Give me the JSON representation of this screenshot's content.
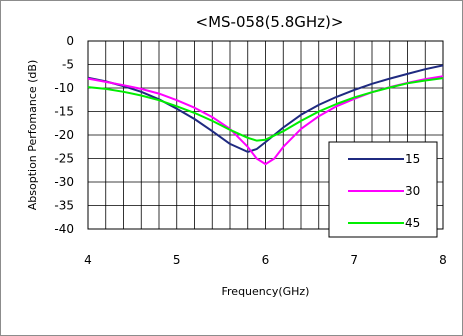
{
  "chart_data": {
    "type": "line",
    "title": "<MS-058(5.8GHz)>",
    "xlabel": "Frequency(GHz)",
    "ylabel": "Absoption Perfomance (dB)",
    "xlim": [
      4,
      8
    ],
    "ylim": [
      -40,
      0
    ],
    "x_ticks": [
      4,
      5,
      6,
      7,
      8
    ],
    "y_ticks": [
      0,
      -5,
      -10,
      -15,
      -20,
      -25,
      -30,
      -35,
      -40
    ],
    "x_minor_step": 0.2,
    "grid": true,
    "legend_position": "right-bottom",
    "series": [
      {
        "name": "15",
        "color": "#1f2a80",
        "points": [
          [
            4.0,
            -7.8
          ],
          [
            4.2,
            -8.6
          ],
          [
            4.4,
            -9.6
          ],
          [
            4.6,
            -10.8
          ],
          [
            4.8,
            -12.4
          ],
          [
            5.0,
            -14.4
          ],
          [
            5.2,
            -16.6
          ],
          [
            5.4,
            -19.2
          ],
          [
            5.6,
            -21.9
          ],
          [
            5.8,
            -23.6
          ],
          [
            5.9,
            -23.0
          ],
          [
            6.0,
            -21.5
          ],
          [
            6.2,
            -18.4
          ],
          [
            6.4,
            -15.7
          ],
          [
            6.6,
            -13.6
          ],
          [
            6.8,
            -11.9
          ],
          [
            7.0,
            -10.4
          ],
          [
            7.2,
            -9.1
          ],
          [
            7.4,
            -8.0
          ],
          [
            7.6,
            -7.0
          ],
          [
            7.8,
            -6.0
          ],
          [
            8.0,
            -5.2
          ]
        ]
      },
      {
        "name": "30",
        "color": "#ff00ff",
        "points": [
          [
            4.0,
            -8.0
          ],
          [
            4.2,
            -8.7
          ],
          [
            4.4,
            -9.4
          ],
          [
            4.6,
            -10.2
          ],
          [
            4.8,
            -11.2
          ],
          [
            5.0,
            -12.6
          ],
          [
            5.2,
            -14.2
          ],
          [
            5.4,
            -16.2
          ],
          [
            5.6,
            -18.7
          ],
          [
            5.8,
            -22.5
          ],
          [
            5.9,
            -25.0
          ],
          [
            6.0,
            -26.2
          ],
          [
            6.1,
            -25.0
          ],
          [
            6.2,
            -22.5
          ],
          [
            6.4,
            -18.7
          ],
          [
            6.6,
            -16.0
          ],
          [
            6.8,
            -13.9
          ],
          [
            7.0,
            -12.3
          ],
          [
            7.2,
            -10.9
          ],
          [
            7.4,
            -9.8
          ],
          [
            7.6,
            -8.9
          ],
          [
            7.8,
            -8.1
          ],
          [
            8.0,
            -7.5
          ]
        ]
      },
      {
        "name": "45",
        "color": "#00ee00",
        "points": [
          [
            4.0,
            -9.8
          ],
          [
            4.2,
            -10.2
          ],
          [
            4.4,
            -10.8
          ],
          [
            4.6,
            -11.6
          ],
          [
            4.8,
            -12.6
          ],
          [
            5.0,
            -13.9
          ],
          [
            5.2,
            -15.3
          ],
          [
            5.4,
            -17.0
          ],
          [
            5.6,
            -18.9
          ],
          [
            5.8,
            -20.6
          ],
          [
            5.9,
            -21.2
          ],
          [
            6.0,
            -21.0
          ],
          [
            6.2,
            -19.2
          ],
          [
            6.4,
            -17.0
          ],
          [
            6.6,
            -15.0
          ],
          [
            6.8,
            -13.4
          ],
          [
            7.0,
            -12.0
          ],
          [
            7.2,
            -10.9
          ],
          [
            7.4,
            -9.9
          ],
          [
            7.6,
            -9.0
          ],
          [
            7.8,
            -8.4
          ],
          [
            8.0,
            -7.9
          ]
        ]
      }
    ]
  }
}
